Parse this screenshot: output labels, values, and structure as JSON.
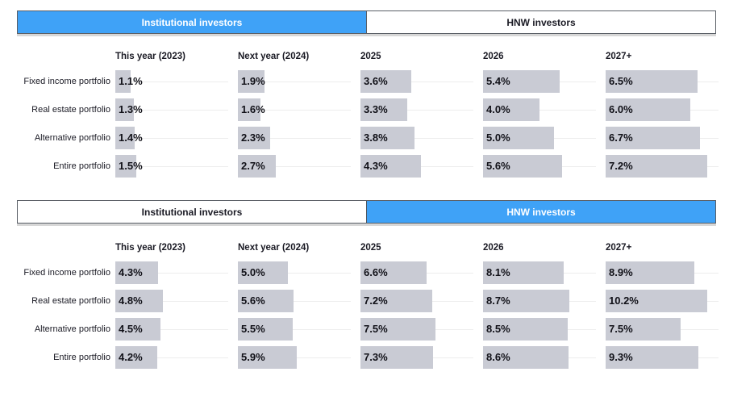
{
  "ui": {
    "panels": [
      {
        "tabs": [
          {
            "label": "Institutional investors",
            "active": true
          },
          {
            "label": "HNW investors",
            "active": false
          }
        ]
      },
      {
        "tabs": [
          {
            "label": "Institutional investors",
            "active": false
          },
          {
            "label": "HNW investors",
            "active": true
          }
        ]
      }
    ]
  },
  "colors": {
    "accent_blue": "#3fa2f7",
    "tab_border": "#5a5f66",
    "tab_shadow": "#d7d7d7",
    "bar_fill": "#c9cbd4",
    "track_line": "#ededed",
    "text_dark": "#1a1a24"
  },
  "chart_data": [
    {
      "type": "bar",
      "title": "Institutional investors",
      "orientation": "horizontal",
      "unit": "%",
      "categories": [
        "Fixed income portfolio",
        "Real estate portfolio",
        "Alternative portfolio",
        "Entire portfolio"
      ],
      "columns": [
        "This year (2023)",
        "Next year (2024)",
        "2025",
        "2026",
        "2027+"
      ],
      "series": [
        {
          "name": "This year (2023)",
          "values": [
            1.1,
            1.3,
            1.4,
            1.5
          ]
        },
        {
          "name": "Next year (2024)",
          "values": [
            1.9,
            1.6,
            2.3,
            2.7
          ]
        },
        {
          "name": "2025",
          "values": [
            3.6,
            3.3,
            3.8,
            4.3
          ]
        },
        {
          "name": "2026",
          "values": [
            5.4,
            4.0,
            5.0,
            5.6
          ]
        },
        {
          "name": "2027+",
          "values": [
            6.5,
            6.0,
            6.7,
            7.2
          ]
        }
      ],
      "xlim": [
        0,
        7.5
      ],
      "grid": false,
      "legend": "none"
    },
    {
      "type": "bar",
      "title": "HNW investors",
      "orientation": "horizontal",
      "unit": "%",
      "categories": [
        "Fixed income portfolio",
        "Real estate portfolio",
        "Alternative portfolio",
        "Entire portfolio"
      ],
      "columns": [
        "This year (2023)",
        "Next year (2024)",
        "2025",
        "2026",
        "2027+"
      ],
      "series": [
        {
          "name": "This year (2023)",
          "values": [
            4.3,
            4.8,
            4.5,
            4.2
          ]
        },
        {
          "name": "Next year (2024)",
          "values": [
            5.0,
            5.6,
            5.5,
            5.9
          ]
        },
        {
          "name": "2025",
          "values": [
            6.6,
            7.2,
            7.5,
            7.3
          ]
        },
        {
          "name": "2026",
          "values": [
            8.1,
            8.7,
            8.5,
            8.6
          ]
        },
        {
          "name": "2027+",
          "values": [
            8.9,
            10.2,
            7.5,
            9.3
          ]
        }
      ],
      "xlim": [
        0,
        10.5
      ],
      "grid": false,
      "legend": "none"
    }
  ]
}
